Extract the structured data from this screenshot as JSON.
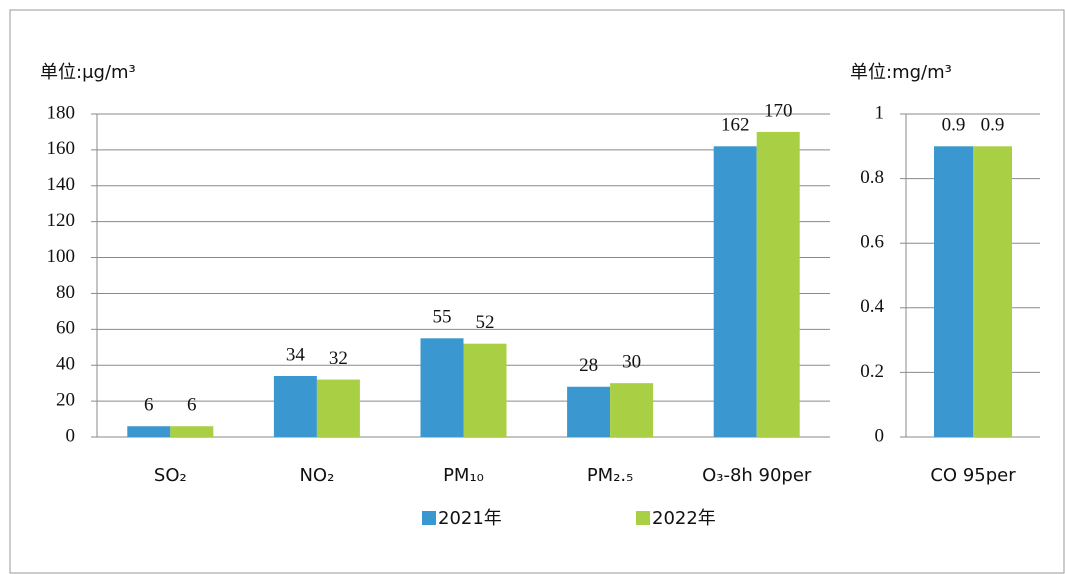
{
  "chart_data": [
    {
      "type": "bar",
      "axis_label": "单位:μg/m³",
      "categories": [
        "SO₂",
        "NO₂",
        "PM₁₀",
        "PM₂.₅",
        "O₃-8h 90per"
      ],
      "series": [
        {
          "name": "2021年",
          "color": "#3a97d0",
          "values": [
            6,
            34,
            55,
            28,
            162
          ]
        },
        {
          "name": "2022年",
          "color": "#a9cf45",
          "values": [
            6,
            32,
            52,
            30,
            170
          ]
        }
      ],
      "ylim": [
        0,
        180
      ],
      "yticks": [
        0,
        20,
        40,
        60,
        80,
        100,
        120,
        140,
        160,
        180
      ],
      "grid": true,
      "legend": "bottom"
    },
    {
      "type": "bar",
      "axis_label": "单位:mg/m³",
      "categories": [
        "CO 95per"
      ],
      "series": [
        {
          "color": "#3a97d0",
          "values": [
            0.9
          ]
        },
        {
          "color": "#a9cf45",
          "values": [
            0.9
          ]
        }
      ],
      "ylim": [
        0,
        1
      ],
      "yticks": [
        0,
        0.2,
        0.4,
        0.6,
        0.8,
        1
      ],
      "grid": true
    }
  ]
}
